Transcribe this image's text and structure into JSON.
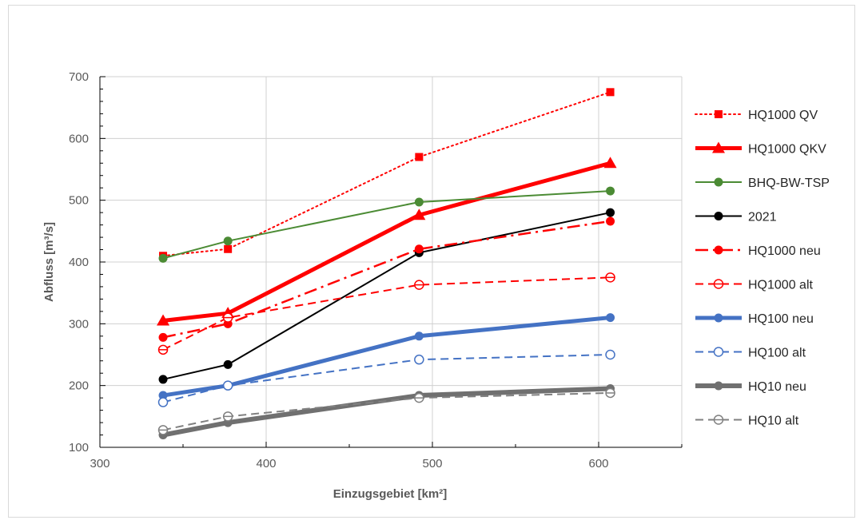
{
  "chart_data": {
    "type": "line",
    "title": "",
    "xlabel": "Einzugsgebiet [km²]",
    "ylabel": "Abfluss [m³/s]",
    "xlim": [
      300,
      650
    ],
    "ylim": [
      100,
      700
    ],
    "xticks": [
      300,
      400,
      500,
      600
    ],
    "yticks": [
      100,
      200,
      300,
      400,
      500,
      600,
      700
    ],
    "x_minor_tick_step": 50,
    "y_minor_tick_step": 20,
    "grid": true,
    "legend_position": "right",
    "series": [
      {
        "name": "HQ1000 QV",
        "color": "#ff0000",
        "line": "dotted",
        "line_width": 2,
        "marker": "square",
        "x": [
          338,
          377,
          492,
          607
        ],
        "y": [
          410,
          421,
          570,
          675
        ]
      },
      {
        "name": "HQ1000 QKV",
        "color": "#ff0000",
        "line": "solid",
        "line_width": 5,
        "marker": "triangle",
        "x": [
          338,
          377,
          492,
          607
        ],
        "y": [
          305,
          317,
          476,
          560
        ]
      },
      {
        "name": "BHQ-BW-TSP",
        "color": "#4b8b34",
        "line": "solid",
        "line_width": 2,
        "marker": "circle",
        "x": [
          338,
          377,
          492,
          607
        ],
        "y": [
          406,
          434,
          497,
          515
        ]
      },
      {
        "name": "2021",
        "color": "#000000",
        "line": "solid",
        "line_width": 2,
        "marker": "circle",
        "x": [
          338,
          377,
          492,
          607
        ],
        "y": [
          210,
          234,
          415,
          480
        ]
      },
      {
        "name": "HQ1000 neu",
        "color": "#ff0000",
        "line": "dashdot",
        "line_width": 2.5,
        "marker": "circle",
        "x": [
          338,
          377,
          492,
          607
        ],
        "y": [
          278,
          300,
          421,
          466
        ]
      },
      {
        "name": "HQ1000 alt",
        "color": "#ff0000",
        "line": "dashed",
        "line_width": 2,
        "marker": "circle-open-bar",
        "x": [
          338,
          377,
          492,
          607
        ],
        "y": [
          258,
          310,
          363,
          375
        ]
      },
      {
        "name": "HQ100 neu",
        "color": "#4472c4",
        "line": "solid",
        "line_width": 5,
        "marker": "circle",
        "x": [
          338,
          377,
          492,
          607
        ],
        "y": [
          184,
          200,
          280,
          310
        ]
      },
      {
        "name": "HQ100 alt",
        "color": "#4472c4",
        "line": "dashed",
        "line_width": 2,
        "marker": "circle-open",
        "x": [
          338,
          377,
          492,
          607
        ],
        "y": [
          173,
          200,
          242,
          250
        ]
      },
      {
        "name": "HQ10 neu",
        "color": "#707070",
        "line": "solid",
        "line_width": 6,
        "marker": "circle",
        "x": [
          338,
          377,
          492,
          607
        ],
        "y": [
          120,
          140,
          184,
          195
        ]
      },
      {
        "name": "HQ10 alt",
        "color": "#808080",
        "line": "dashed",
        "line_width": 2,
        "marker": "circle-open-bar",
        "x": [
          338,
          377,
          492,
          607
        ],
        "y": [
          128,
          150,
          180,
          188
        ]
      }
    ]
  }
}
